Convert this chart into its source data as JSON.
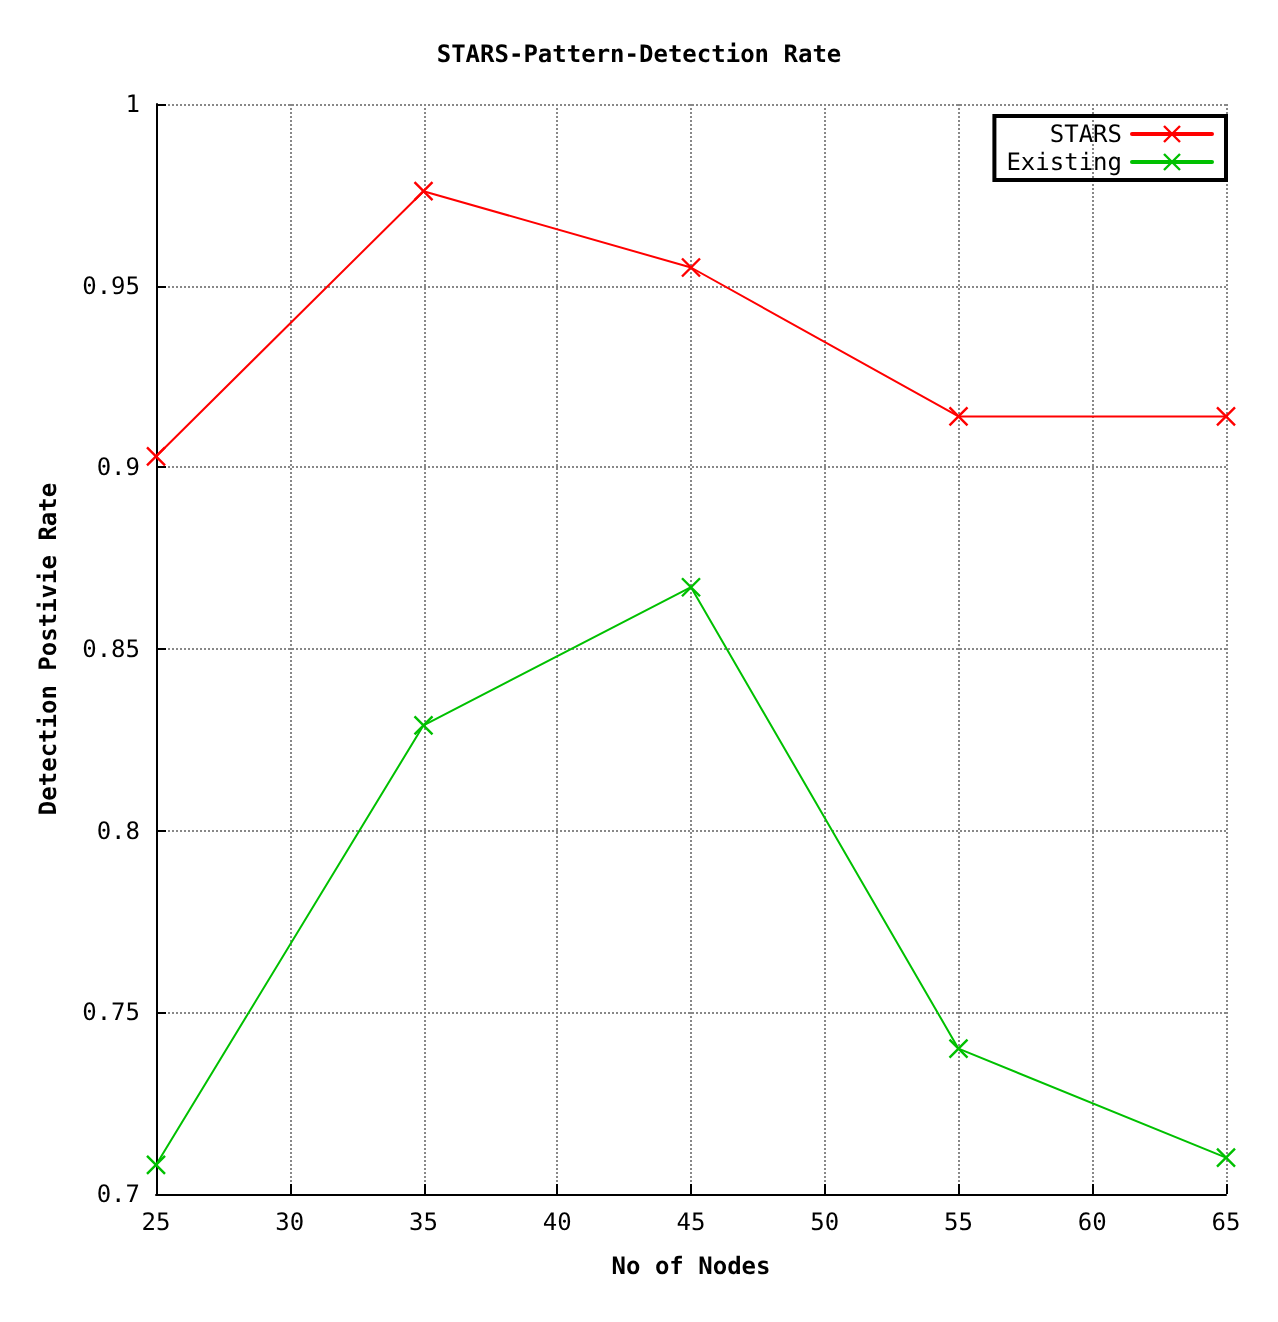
{
  "chart_data": {
    "type": "line",
    "title": "STARS-Pattern-Detection Rate",
    "xlabel": "No of Nodes",
    "ylabel": "Detection Postivie Rate",
    "x": [
      25,
      35,
      45,
      55,
      65
    ],
    "series": [
      {
        "name": "STARS",
        "color": "#ff0000",
        "values": [
          0.903,
          0.976,
          0.955,
          0.914,
          0.914
        ]
      },
      {
        "name": "Existing",
        "color": "#00c000",
        "values": [
          0.708,
          0.829,
          0.867,
          0.74,
          0.71
        ]
      }
    ],
    "xlim": [
      25,
      65
    ],
    "xticks": [
      25,
      30,
      35,
      40,
      45,
      50,
      55,
      60,
      65
    ],
    "ylim": [
      0.7,
      1
    ],
    "yticks": [
      0.7,
      0.75,
      0.8,
      0.85,
      0.9,
      0.95,
      1
    ],
    "grid": true,
    "legend": "top right",
    "marker": "cross",
    "line_style": "solid"
  }
}
